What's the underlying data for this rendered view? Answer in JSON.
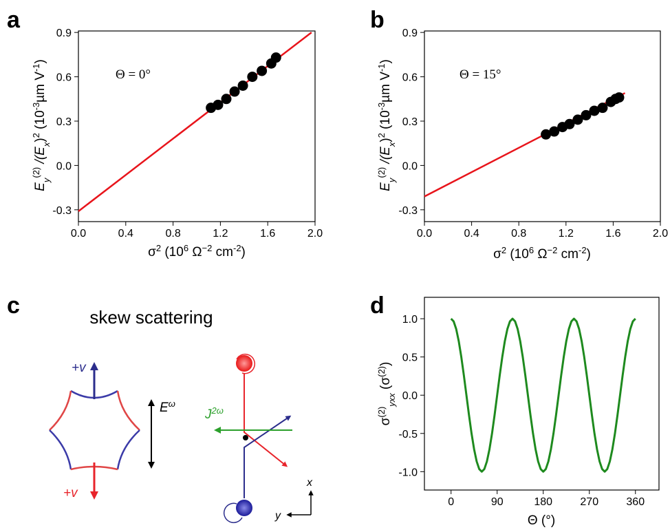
{
  "chart_data": [
    {
      "type": "scatter",
      "label": "a",
      "ylabel": [
        "E",
        "y",
        "(2)",
        " /(E",
        "x",
        ")",
        "2",
        " (10",
        "-3",
        "µm V",
        "-1",
        ")"
      ],
      "xlabel": [
        "σ",
        "2",
        " (10",
        "6",
        " Ω",
        "−2",
        " cm",
        "-2",
        ")"
      ],
      "annotation": "Θ = 0°",
      "xlim": [
        0,
        2
      ],
      "ylim": [
        -0.38,
        0.91
      ],
      "xticks": [
        {
          "value": 0,
          "label": "0.0"
        },
        0.4,
        0.8,
        1.2,
        1.6,
        {
          "value": 2,
          "label": "2.0"
        }
      ],
      "yticks": [
        0.9,
        0.6,
        0.3,
        {
          "value": 0,
          "label": "0.0"
        },
        -0.3
      ],
      "points": {
        "x": [
          1.12,
          1.18,
          1.25,
          1.32,
          1.39,
          1.47,
          1.55,
          1.63,
          1.67
        ],
        "y": [
          0.39,
          0.41,
          0.45,
          0.5,
          0.54,
          0.6,
          0.64,
          0.69,
          0.73
        ],
        "color": "#000000"
      },
      "fit": {
        "x": [
          0,
          1.97
        ],
        "y": [
          -0.31,
          0.9
        ],
        "color": "#e8141b"
      }
    },
    {
      "type": "scatter",
      "label": "b",
      "ylabel": [
        "E",
        "y",
        "(2)",
        " /(E",
        "x",
        ")",
        "2",
        " (10",
        "-3",
        "µm V",
        "-1",
        ")"
      ],
      "xlabel": [
        "σ",
        "2",
        " (10",
        "6",
        " Ω",
        "−2",
        " cm",
        "-2",
        ")"
      ],
      "annotation": "Θ = 15°",
      "xlim": [
        0,
        2
      ],
      "ylim": [
        -0.38,
        0.91
      ],
      "xticks": [
        {
          "value": 0,
          "label": "0.0"
        },
        0.4,
        0.8,
        1.2,
        1.6,
        {
          "value": 2,
          "label": "2.0"
        }
      ],
      "yticks": [
        0.9,
        0.6,
        0.3,
        {
          "value": 0,
          "label": "0.0"
        },
        -0.3
      ],
      "points": {
        "x": [
          1.03,
          1.1,
          1.17,
          1.23,
          1.3,
          1.37,
          1.44,
          1.51,
          1.58,
          1.62,
          1.65
        ],
        "y": [
          0.21,
          0.23,
          0.26,
          0.28,
          0.31,
          0.34,
          0.37,
          0.39,
          0.43,
          0.45,
          0.46
        ],
        "color": "#000000"
      },
      "fit": {
        "x": [
          0,
          1.7
        ],
        "y": [
          -0.21,
          0.49
        ],
        "color": "#e8141b"
      }
    },
    {
      "type": "line",
      "label": "d",
      "ylabel": [
        "σ",
        "(2)",
        "yxx",
        " (σ",
        "(2)",
        ")"
      ],
      "xlabel": [
        "Θ (°)"
      ],
      "xlim": [
        -52,
        406
      ],
      "ylim": [
        -1.24,
        1.28
      ],
      "xticks": [
        0,
        90,
        180,
        270,
        360
      ],
      "yticks": [
        {
          "value": 1,
          "label": "1.0"
        },
        0.5,
        {
          "value": 0,
          "label": "0.0"
        },
        -0.5,
        {
          "value": -1,
          "label": "-1.0"
        }
      ],
      "color": "#1e8a1e",
      "x": [
        0,
        5,
        10,
        15,
        20,
        25,
        30,
        35,
        40,
        45,
        50,
        55,
        60,
        65,
        70,
        75,
        80,
        85,
        90,
        95,
        100,
        105,
        110,
        115,
        120,
        125,
        130,
        135,
        140,
        145,
        150,
        155,
        160,
        165,
        170,
        175,
        180,
        185,
        190,
        195,
        200,
        205,
        210,
        215,
        220,
        225,
        230,
        235,
        240,
        245,
        250,
        255,
        260,
        265,
        270,
        275,
        280,
        285,
        290,
        295,
        300,
        305,
        310,
        315,
        320,
        325,
        330,
        335,
        340,
        345,
        350,
        355,
        360
      ],
      "values": [
        1,
        0.966,
        0.866,
        0.707,
        0.5,
        0.259,
        0,
        -0.259,
        -0.5,
        -0.707,
        -0.866,
        -0.966,
        -1,
        -0.966,
        -0.866,
        -0.707,
        -0.5,
        -0.259,
        0,
        0.259,
        0.5,
        0.707,
        0.866,
        0.966,
        1,
        0.966,
        0.866,
        0.707,
        0.5,
        0.259,
        0,
        -0.259,
        -0.5,
        -0.707,
        -0.866,
        -0.966,
        -1,
        -0.966,
        -0.866,
        -0.707,
        -0.5,
        -0.259,
        0,
        0.259,
        0.5,
        0.707,
        0.866,
        0.966,
        1,
        0.966,
        0.866,
        0.707,
        0.5,
        0.259,
        0,
        -0.259,
        -0.5,
        -0.707,
        -0.866,
        -0.966,
        -1,
        -0.966,
        -0.866,
        -0.707,
        -0.5,
        -0.259,
        0,
        0.259,
        0.5,
        0.707,
        0.866,
        0.966,
        1
      ]
    }
  ],
  "diagram": {
    "label": "c",
    "title": "skew scattering",
    "velocity_up": "+v",
    "velocity_down": "+v",
    "field": [
      "E",
      "ω"
    ],
    "current": [
      "J",
      "2ω"
    ],
    "axis_x": "x",
    "axis_y": "y"
  }
}
